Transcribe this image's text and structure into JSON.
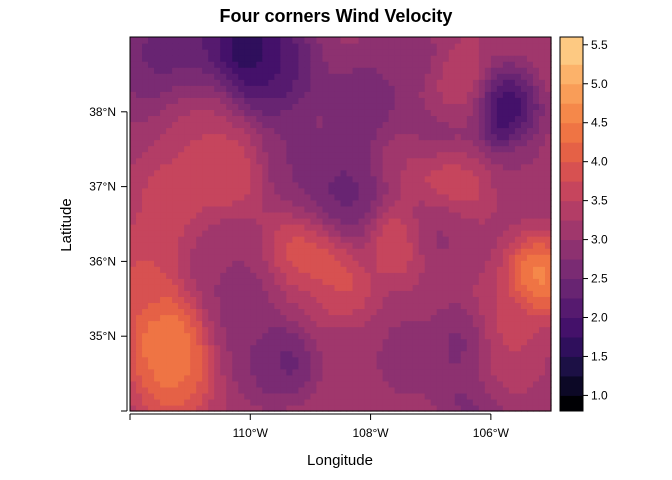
{
  "chart_data": {
    "type": "heatmap",
    "title": "Four corners Wind Velocity",
    "xlabel": "Longitude",
    "ylabel": "Latitude",
    "xlim": [
      -112.0,
      -105.0
    ],
    "ylim": [
      34.0,
      39.0
    ],
    "x_ticks": [
      {
        "value": -112.0,
        "label": ""
      },
      {
        "value": -110.0,
        "label": "110°W"
      },
      {
        "value": -108.0,
        "label": "108°W"
      },
      {
        "value": -106.0,
        "label": "106°W"
      }
    ],
    "y_ticks": [
      {
        "value": 34.0,
        "label": ""
      },
      {
        "value": 35.0,
        "label": "35°N"
      },
      {
        "value": 36.0,
        "label": "36°N"
      },
      {
        "value": 37.0,
        "label": "37°N"
      },
      {
        "value": 38.0,
        "label": "38°N"
      }
    ],
    "colorbar": {
      "range": [
        0.8,
        5.6
      ],
      "breaks": [
        0.8,
        1.0,
        1.25,
        1.5,
        1.75,
        2.0,
        2.25,
        2.5,
        2.75,
        3.0,
        3.25,
        3.5,
        3.75,
        4.0,
        4.25,
        4.5,
        4.75,
        5.0,
        5.25,
        5.6
      ],
      "colors": [
        "#000004",
        "#0c0826",
        "#1c1045",
        "#2f0f5c",
        "#44116a",
        "#561a6f",
        "#682472",
        "#7a2b73",
        "#8d3170",
        "#a0376c",
        "#b33d66",
        "#c6455d",
        "#d75151",
        "#e56146",
        "#ef7444",
        "#f5884a",
        "#f99d58",
        "#fcb26a",
        "#fdc982",
        "#fce5a3"
      ],
      "tick_values": [
        1.0,
        1.5,
        2.0,
        2.5,
        3.0,
        3.5,
        4.0,
        4.5,
        5.0,
        5.5
      ],
      "tick_labels": [
        "1.0",
        "1.5",
        "2.0",
        "2.5",
        "3.0",
        "3.5",
        "4.0",
        "4.5",
        "5.0",
        "5.5"
      ]
    },
    "field": {
      "base": 3.2,
      "features": [
        {
          "lon": -111.1,
          "lat": 38.7,
          "value": 1.9,
          "spread": 0.8
        },
        {
          "lon": -110.1,
          "lat": 38.85,
          "value": 0.9,
          "spread": 0.5
        },
        {
          "lon": -109.6,
          "lat": 38.6,
          "value": 1.7,
          "spread": 0.6
        },
        {
          "lon": -108.1,
          "lat": 38.1,
          "value": 2.4,
          "spread": 0.6
        },
        {
          "lon": -105.8,
          "lat": 38.0,
          "value": 1.1,
          "spread": 0.45
        },
        {
          "lon": -106.7,
          "lat": 37.8,
          "value": 1.7,
          "spread": 0.5
        },
        {
          "lon": -107.2,
          "lat": 38.6,
          "value": 2.7,
          "spread": 0.45
        },
        {
          "lon": -106.6,
          "lat": 38.1,
          "value": 4.4,
          "spread": 0.5
        },
        {
          "lon": -110.9,
          "lat": 37.9,
          "value": 3.9,
          "spread": 0.6
        },
        {
          "lon": -108.5,
          "lat": 36.85,
          "value": 2.1,
          "spread": 0.6
        },
        {
          "lon": -109.2,
          "lat": 37.4,
          "value": 2.6,
          "spread": 0.5
        },
        {
          "lon": -106.9,
          "lat": 36.5,
          "value": 2.8,
          "spread": 0.45
        },
        {
          "lon": -110.0,
          "lat": 35.4,
          "value": 2.7,
          "spread": 0.6
        },
        {
          "lon": -109.0,
          "lat": 35.5,
          "value": 2.9,
          "spread": 0.45
        },
        {
          "lon": -108.5,
          "lat": 34.9,
          "value": 3.0,
          "spread": 0.4
        },
        {
          "lon": -109.4,
          "lat": 34.7,
          "value": 2.1,
          "spread": 0.4
        },
        {
          "lon": -109.8,
          "lat": 34.6,
          "value": 2.6,
          "spread": 0.4
        },
        {
          "lon": -107.4,
          "lat": 34.7,
          "value": 2.8,
          "spread": 0.5
        },
        {
          "lon": -106.5,
          "lat": 34.9,
          "value": 2.5,
          "spread": 0.4
        },
        {
          "lon": -106.2,
          "lat": 34.2,
          "value": 2.4,
          "spread": 0.5
        },
        {
          "lon": -107.6,
          "lat": 34.2,
          "value": 3.0,
          "spread": 0.4
        },
        {
          "lon": -111.4,
          "lat": 35.0,
          "value": 4.9,
          "spread": 0.5
        },
        {
          "lon": -111.3,
          "lat": 34.5,
          "value": 4.6,
          "spread": 0.5
        },
        {
          "lon": -111.8,
          "lat": 35.8,
          "value": 4.0,
          "spread": 0.55
        },
        {
          "lon": -110.5,
          "lat": 36.0,
          "value": 3.0,
          "spread": 0.5
        },
        {
          "lon": -109.0,
          "lat": 36.0,
          "value": 4.5,
          "spread": 0.55
        },
        {
          "lon": -108.6,
          "lat": 35.6,
          "value": 4.1,
          "spread": 0.45
        },
        {
          "lon": -105.2,
          "lat": 35.8,
          "value": 5.1,
          "spread": 0.4
        },
        {
          "lon": -105.7,
          "lat": 35.2,
          "value": 3.7,
          "spread": 0.45
        },
        {
          "lon": -106.7,
          "lat": 37.2,
          "value": 4.2,
          "spread": 0.5
        },
        {
          "lon": -107.6,
          "lat": 36.3,
          "value": 4.0,
          "spread": 0.4
        },
        {
          "lon": -107.5,
          "lat": 37.4,
          "value": 3.3,
          "spread": 0.35
        },
        {
          "lon": -111.3,
          "lat": 36.8,
          "value": 3.8,
          "spread": 0.5
        },
        {
          "lon": -110.4,
          "lat": 37.2,
          "value": 3.9,
          "spread": 0.45
        },
        {
          "lon": -105.4,
          "lat": 37.3,
          "value": 3.0,
          "spread": 0.45
        },
        {
          "lon": -105.9,
          "lat": 34.5,
          "value": 3.8,
          "spread": 0.4
        }
      ]
    }
  }
}
